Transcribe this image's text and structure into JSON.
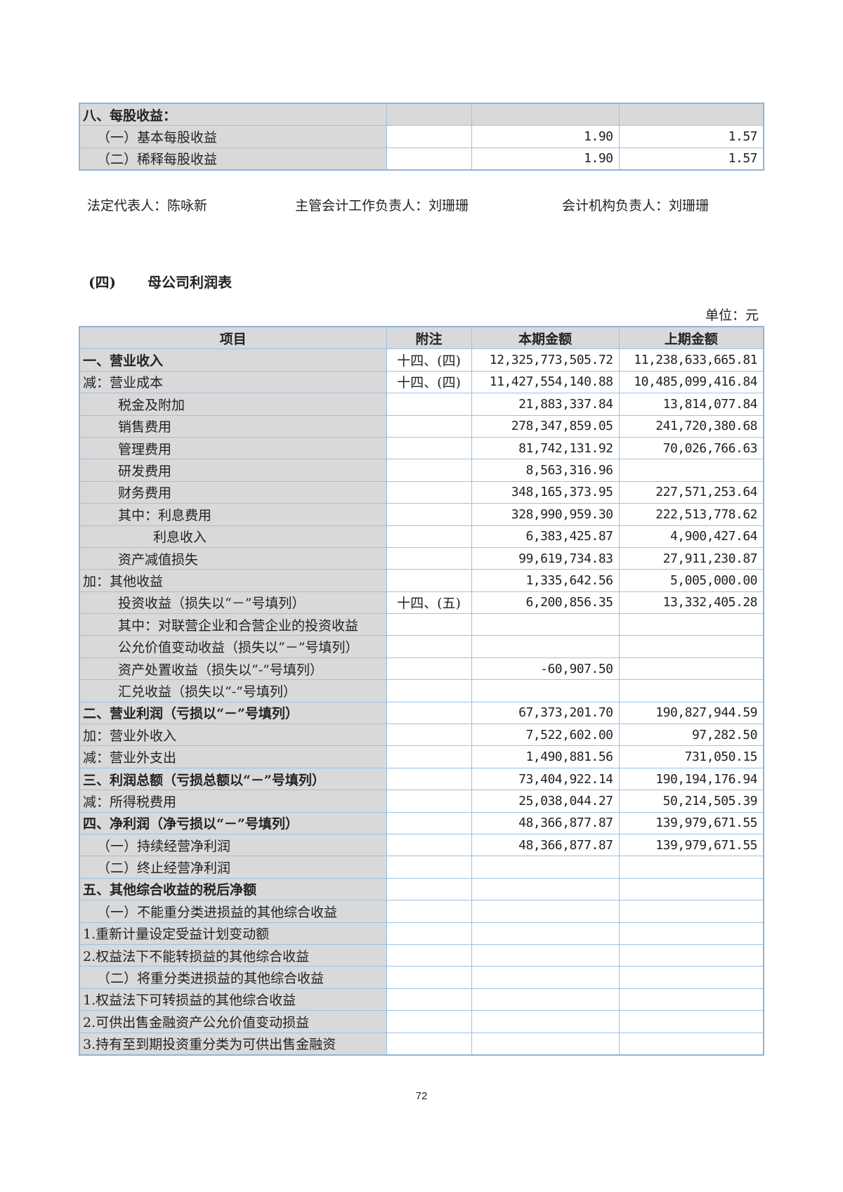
{
  "eps_table": {
    "rows": [
      {
        "label": "八、每股收益：",
        "note": "",
        "current": "",
        "previous": "",
        "indent": 0,
        "bold": true
      },
      {
        "label": "（一）基本每股收益",
        "note": "",
        "current": "1.90",
        "previous": "1.57",
        "indent": 0.4,
        "bold": false
      },
      {
        "label": "（二）稀释每股收益",
        "note": "",
        "current": "1.90",
        "previous": "1.57",
        "indent": 0.4,
        "bold": false
      }
    ]
  },
  "signatures": {
    "legal_rep": "法定代表人：陈咏新",
    "accounting_head": "主管会计工作负责人：刘珊珊",
    "accounting_dept_head": "会计机构负责人：刘珊珊"
  },
  "section": {
    "number": "(四)",
    "title": "母公司利润表",
    "unit": "单位：元"
  },
  "income_table": {
    "headers": [
      "项目",
      "附注",
      "本期金额",
      "上期金额"
    ],
    "rows": [
      {
        "label": "一、营业收入",
        "note": "十四、(四)",
        "current": "12,325,773,505.72",
        "previous": "11,238,633,665.81",
        "indent": 0,
        "bold": true
      },
      {
        "label": "减：营业成本",
        "note": "十四、(四)",
        "current": "11,427,554,140.88",
        "previous": "10,485,099,416.84",
        "indent": 0,
        "bold": false
      },
      {
        "label": "税金及附加",
        "note": "",
        "current": "21,883,337.84",
        "previous": "13,814,077.84",
        "indent": 1,
        "bold": false
      },
      {
        "label": "销售费用",
        "note": "",
        "current": "278,347,859.05",
        "previous": "241,720,380.68",
        "indent": 1,
        "bold": false
      },
      {
        "label": "管理费用",
        "note": "",
        "current": "81,742,131.92",
        "previous": "70,026,766.63",
        "indent": 1,
        "bold": false
      },
      {
        "label": "研发费用",
        "note": "",
        "current": "8,563,316.96",
        "previous": "",
        "indent": 1,
        "bold": false
      },
      {
        "label": "财务费用",
        "note": "",
        "current": "348,165,373.95",
        "previous": "227,571,253.64",
        "indent": 1,
        "bold": false
      },
      {
        "label": "其中：利息费用",
        "note": "",
        "current": "328,990,959.30",
        "previous": "222,513,778.62",
        "indent": 1,
        "bold": false
      },
      {
        "label": "利息收入",
        "note": "",
        "current": "6,383,425.87",
        "previous": "4,900,427.64",
        "indent": 2,
        "bold": false
      },
      {
        "label": "资产减值损失",
        "note": "",
        "current": "99,619,734.83",
        "previous": "27,911,230.87",
        "indent": 1,
        "bold": false
      },
      {
        "label": "加：其他收益",
        "note": "",
        "current": "1,335,642.56",
        "previous": "5,005,000.00",
        "indent": 0,
        "bold": false
      },
      {
        "label": "投资收益（损失以“－”号填列）",
        "note": "十四、(五)",
        "current": "6,200,856.35",
        "previous": "13,332,405.28",
        "indent": 1,
        "bold": false
      },
      {
        "label": "其中：对联营企业和合营企业的投资收益",
        "note": "",
        "current": "",
        "previous": "",
        "indent": 1,
        "bold": false
      },
      {
        "label": "公允价值变动收益（损失以“－”号填列）",
        "note": "",
        "current": "",
        "previous": "",
        "indent": 1,
        "bold": false
      },
      {
        "label": "资产处置收益（损失以“-”号填列）",
        "note": "",
        "current": "-60,907.50",
        "previous": "",
        "indent": 1,
        "bold": false
      },
      {
        "label": "汇兑收益（损失以“-”号填列）",
        "note": "",
        "current": "",
        "previous": "",
        "indent": 1,
        "bold": false
      },
      {
        "label": "二、营业利润（亏损以“－”号填列）",
        "note": "",
        "current": "67,373,201.70",
        "previous": "190,827,944.59",
        "indent": 0,
        "bold": true
      },
      {
        "label": "加：营业外收入",
        "note": "",
        "current": "7,522,602.00",
        "previous": "97,282.50",
        "indent": 0,
        "bold": false
      },
      {
        "label": "减：营业外支出",
        "note": "",
        "current": "1,490,881.56",
        "previous": "731,050.15",
        "indent": 0,
        "bold": false
      },
      {
        "label": "三、利润总额（亏损总额以“－”号填列）",
        "note": "",
        "current": "73,404,922.14",
        "previous": "190,194,176.94",
        "indent": 0,
        "bold": true
      },
      {
        "label": "减：所得税费用",
        "note": "",
        "current": "25,038,044.27",
        "previous": "50,214,505.39",
        "indent": 0,
        "bold": false
      },
      {
        "label": "四、净利润（净亏损以“－”号填列）",
        "note": "",
        "current": "48,366,877.87",
        "previous": "139,979,671.55",
        "indent": 0,
        "bold": true
      },
      {
        "label": "（一）持续经营净利润",
        "note": "",
        "current": "48,366,877.87",
        "previous": "139,979,671.55",
        "indent": 0.4,
        "bold": false
      },
      {
        "label": "（二）终止经营净利润",
        "note": "",
        "current": "",
        "previous": "",
        "indent": 0.4,
        "bold": false
      },
      {
        "label": "五、其他综合收益的税后净额",
        "note": "",
        "current": "",
        "previous": "",
        "indent": 0,
        "bold": true
      },
      {
        "label": "（一）不能重分类进损益的其他综合收益",
        "note": "",
        "current": "",
        "previous": "",
        "indent": 0.4,
        "bold": false
      },
      {
        "label": "1.重新计量设定受益计划变动额",
        "note": "",
        "current": "",
        "previous": "",
        "indent": 0,
        "bold": false
      },
      {
        "label": "2.权益法下不能转损益的其他综合收益",
        "note": "",
        "current": "",
        "previous": "",
        "indent": 0,
        "bold": false
      },
      {
        "label": "（二）将重分类进损益的其他综合收益",
        "note": "",
        "current": "",
        "previous": "",
        "indent": 0.4,
        "bold": false
      },
      {
        "label": "1.权益法下可转损益的其他综合收益",
        "note": "",
        "current": "",
        "previous": "",
        "indent": 0,
        "bold": false
      },
      {
        "label": "2.可供出售金融资产公允价值变动损益",
        "note": "",
        "current": "",
        "previous": "",
        "indent": 0,
        "bold": false
      },
      {
        "label": "3.持有至到期投资重分类为可供出售金融资",
        "note": "",
        "current": "",
        "previous": "",
        "indent": 0,
        "bold": false
      }
    ]
  },
  "page_number": "72",
  "colors": {
    "border": "#9cc2e5",
    "label_bg": "#d9d9d9"
  }
}
